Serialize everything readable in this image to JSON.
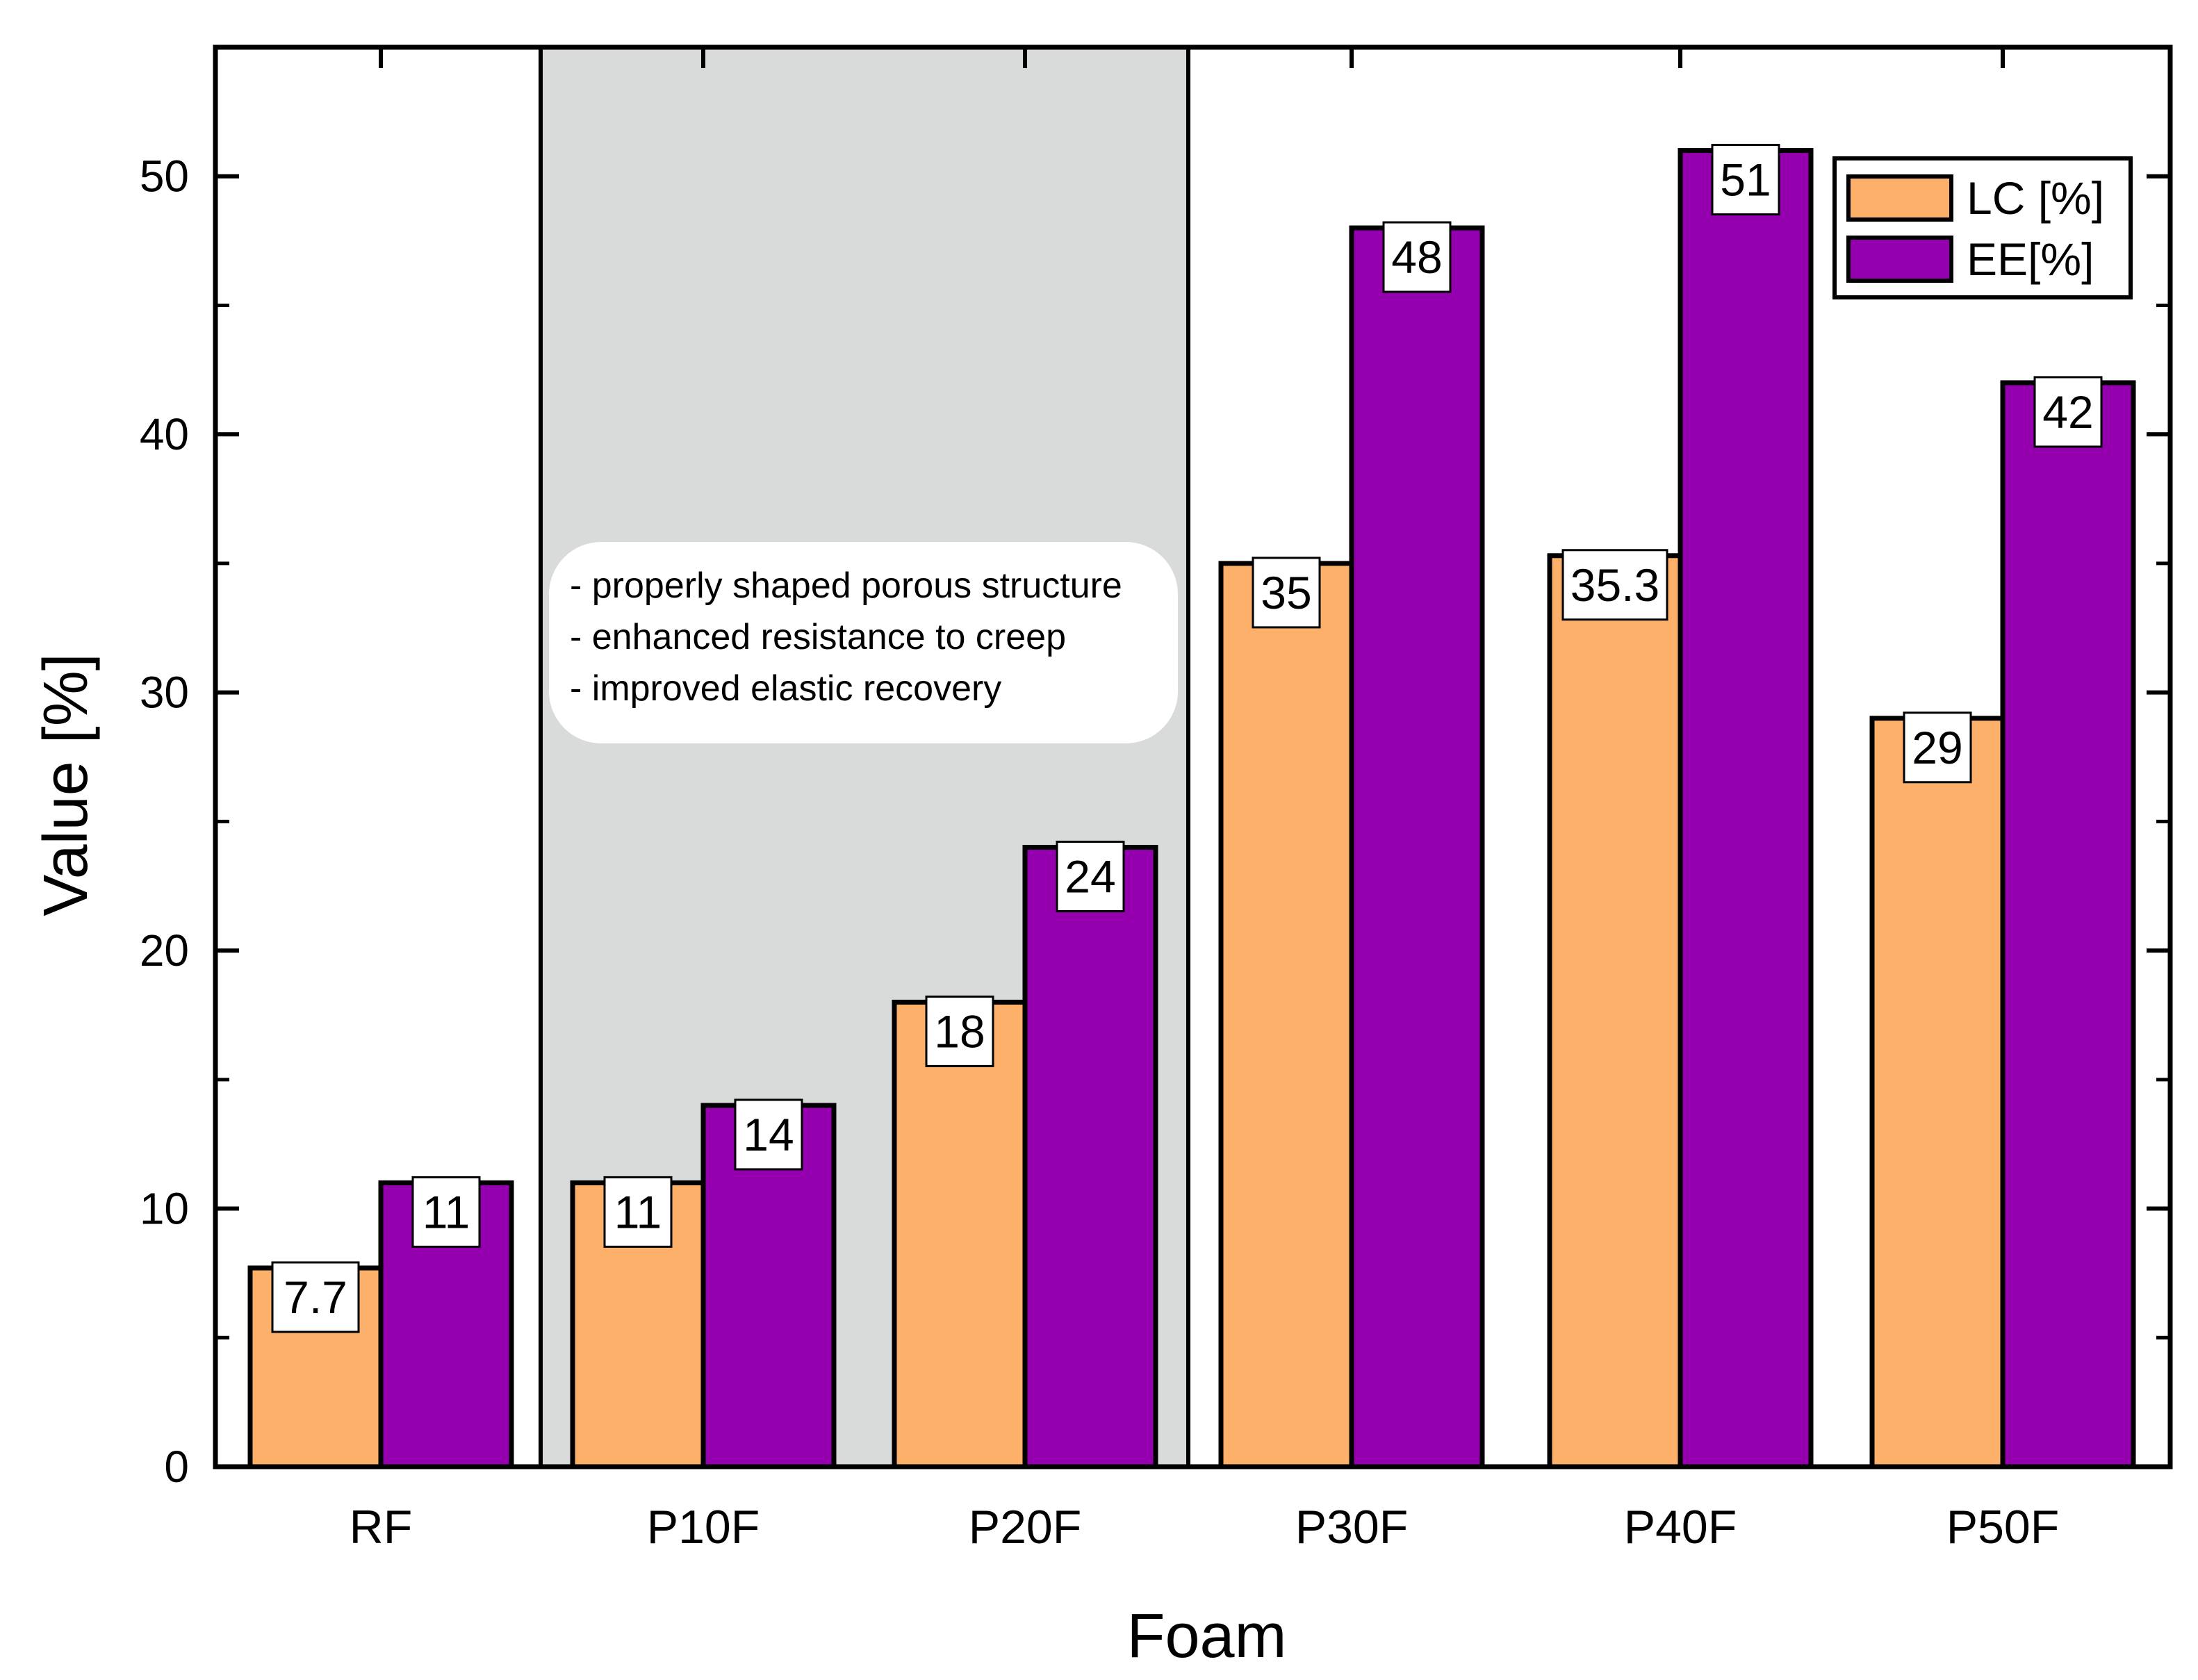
{
  "chart_data": {
    "type": "bar",
    "title": "",
    "xlabel": "Foam",
    "ylabel": "Value [%]",
    "ylim": [
      0,
      55
    ],
    "yticks": [
      0,
      10,
      20,
      30,
      40,
      50
    ],
    "categories": [
      "RF",
      "P10F",
      "P20F",
      "P30F",
      "P40F",
      "P50F"
    ],
    "series": [
      {
        "name": "LC [%]",
        "color": "#FDB06A",
        "values": [
          7.7,
          11,
          18,
          35,
          35.3,
          29
        ],
        "labels": [
          "7.7",
          "11",
          "18",
          "35",
          "35.3",
          "29"
        ]
      },
      {
        "name": "EE[%]",
        "color": "#9400AE",
        "values": [
          11,
          14,
          24,
          48,
          51,
          42
        ],
        "labels": [
          "11",
          "14",
          "24",
          "48",
          "51",
          "42"
        ]
      }
    ],
    "legend": "top-right",
    "highlight_region": {
      "from_category": "P10F",
      "to_category": "P20F",
      "color": "#D9DADA"
    },
    "annotation_lines": [
      "- properly shaped porous structure",
      "- enhanced resistance to creep",
      "- improved elastic recovery"
    ]
  }
}
